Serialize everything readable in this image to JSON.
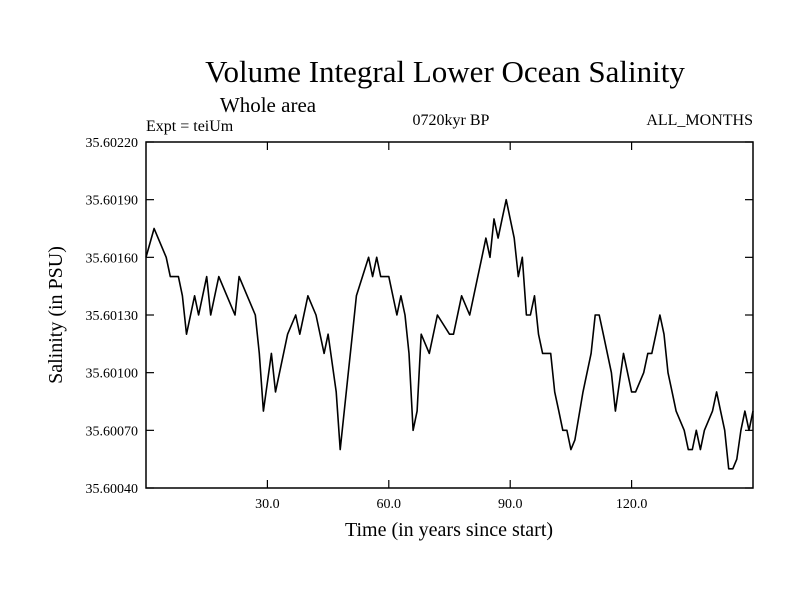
{
  "chart_data": {
    "type": "line",
    "title": "Volume Integral Lower Ocean Salinity",
    "subtitle": "Whole area",
    "experiment": "Expt = teiUm",
    "period": "0720kyr BP",
    "months": "ALL_MONTHS",
    "xlabel": "Time (in years since start)",
    "ylabel": "Salinity (in PSU)",
    "xlim": [
      0,
      150
    ],
    "ylim": [
      35.6004,
      35.6022
    ],
    "x_ticks": [
      30,
      60,
      90,
      120
    ],
    "x_tick_labels": [
      "30.0",
      "60.0",
      "90.0",
      "120.0"
    ],
    "y_ticks": [
      35.6004,
      35.6007,
      35.601,
      35.6013,
      35.6016,
      35.6019,
      35.6022
    ],
    "y_tick_labels": [
      "35.60040",
      "35.60070",
      "35.60100",
      "35.60130",
      "35.60160",
      "35.60190",
      "35.60220"
    ],
    "grid": false,
    "series": [
      {
        "name": "Volume integral lower ocean salinity",
        "color": "#000000",
        "x": [
          0,
          2,
          3,
          5,
          6,
          8,
          9,
          10,
          12,
          13,
          15,
          16,
          18,
          20,
          22,
          23,
          25,
          27,
          28,
          29,
          30,
          31,
          32,
          35,
          37,
          38,
          40,
          42,
          44,
          45,
          47,
          48,
          50,
          51,
          52,
          55,
          56,
          57,
          58,
          60,
          62,
          63,
          64,
          65,
          66,
          67,
          68,
          70,
          72,
          75,
          76,
          78,
          80,
          82,
          83,
          84,
          85,
          86,
          87,
          88,
          89,
          90,
          91,
          92,
          93,
          94,
          95,
          96,
          97,
          98,
          100,
          101,
          102,
          103,
          104,
          105,
          106,
          108,
          110,
          111,
          112,
          113,
          115,
          116,
          118,
          120,
          121,
          123,
          124,
          125,
          126,
          127,
          128,
          129,
          130,
          131,
          133,
          134,
          135,
          136,
          137,
          138,
          140,
          141,
          142,
          143,
          144,
          145,
          146,
          147,
          148,
          149,
          150
        ],
        "values": [
          35.6016,
          35.60175,
          35.6017,
          35.6016,
          35.6015,
          35.6015,
          35.6014,
          35.6012,
          35.6014,
          35.6013,
          35.6015,
          35.6013,
          35.6015,
          35.6014,
          35.6013,
          35.6015,
          35.6014,
          35.6013,
          35.6011,
          35.6008,
          35.60095,
          35.6011,
          35.6009,
          35.6012,
          35.6013,
          35.6012,
          35.6014,
          35.6013,
          35.6011,
          35.6012,
          35.6009,
          35.6006,
          35.601,
          35.6012,
          35.6014,
          35.6016,
          35.6015,
          35.6016,
          35.6015,
          35.6015,
          35.6013,
          35.6014,
          35.6013,
          35.6011,
          35.6007,
          35.6008,
          35.6012,
          35.6011,
          35.6013,
          35.6012,
          35.6012,
          35.6014,
          35.6013,
          35.6015,
          35.6016,
          35.6017,
          35.6016,
          35.6018,
          35.6017,
          35.6018,
          35.6019,
          35.6018,
          35.6017,
          35.6015,
          35.6016,
          35.6013,
          35.6013,
          35.6014,
          35.6012,
          35.6011,
          35.6011,
          35.6009,
          35.6008,
          35.6007,
          35.6007,
          35.6006,
          35.60065,
          35.6009,
          35.6011,
          35.6013,
          35.6013,
          35.6012,
          35.601,
          35.6008,
          35.6011,
          35.6009,
          35.6009,
          35.601,
          35.6011,
          35.6011,
          35.6012,
          35.6013,
          35.6012,
          35.601,
          35.6009,
          35.6008,
          35.6007,
          35.6006,
          35.6006,
          35.6007,
          35.6006,
          35.6007,
          35.6008,
          35.6009,
          35.6008,
          35.6007,
          35.6005,
          35.6005,
          35.60055,
          35.6007,
          35.6008,
          35.6007,
          35.6008
        ]
      }
    ]
  }
}
